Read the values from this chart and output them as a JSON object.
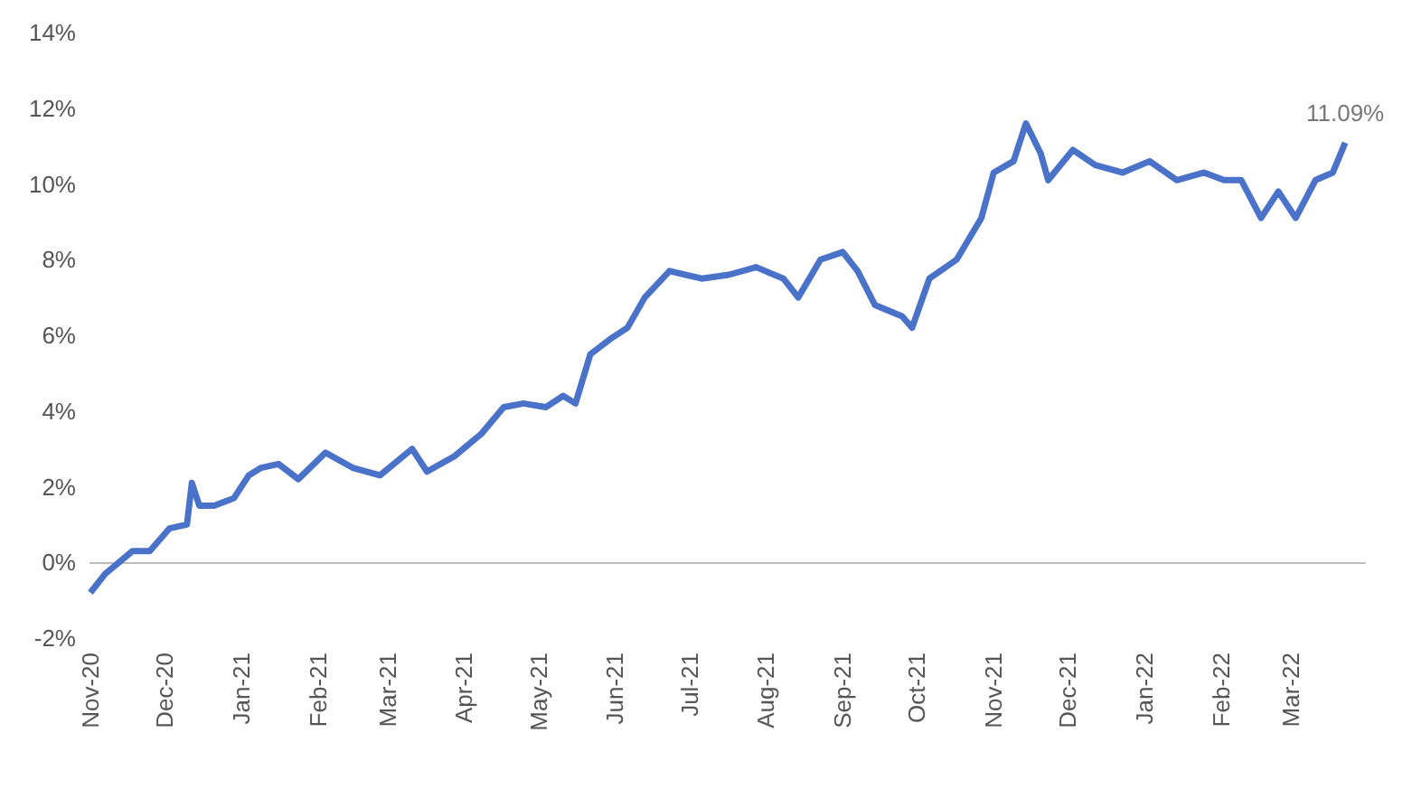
{
  "chart_data": {
    "type": "line",
    "x": [
      "2020-11-01",
      "2020-11-07",
      "2020-11-18",
      "2020-11-25",
      "2020-12-03",
      "2020-12-10",
      "2020-12-12",
      "2020-12-15",
      "2020-12-21",
      "2020-12-29",
      "2021-01-04",
      "2021-01-09",
      "2021-01-16",
      "2021-01-24",
      "2021-02-04",
      "2021-02-15",
      "2021-02-26",
      "2021-03-11",
      "2021-03-17",
      "2021-03-28",
      "2021-04-08",
      "2021-04-17",
      "2021-04-25",
      "2021-05-04",
      "2021-05-11",
      "2021-05-16",
      "2021-05-22",
      "2021-05-30",
      "2021-06-06",
      "2021-06-13",
      "2021-06-23",
      "2021-07-06",
      "2021-07-17",
      "2021-07-28",
      "2021-08-08",
      "2021-08-14",
      "2021-08-23",
      "2021-09-01",
      "2021-09-07",
      "2021-09-14",
      "2021-09-25",
      "2021-09-29",
      "2021-10-06",
      "2021-10-17",
      "2021-10-27",
      "2021-11-01",
      "2021-11-09",
      "2021-11-14",
      "2021-11-20",
      "2021-11-23",
      "2021-12-03",
      "2021-12-12",
      "2021-12-23",
      "2022-01-03",
      "2022-01-14",
      "2022-01-25",
      "2022-02-02",
      "2022-02-09",
      "2022-02-17",
      "2022-02-24",
      "2022-03-03",
      "2022-03-11",
      "2022-03-18",
      "2022-03-23"
    ],
    "series": [
      {
        "color": "#4a72c8",
        "values": [
          -0.8,
          -0.3,
          0.3,
          0.3,
          0.9,
          1.0,
          2.1,
          1.5,
          1.5,
          1.7,
          2.3,
          2.5,
          2.6,
          2.2,
          2.9,
          2.5,
          2.3,
          3.0,
          2.4,
          2.8,
          3.4,
          4.1,
          4.2,
          4.1,
          4.4,
          4.2,
          5.5,
          5.9,
          6.2,
          7.0,
          7.7,
          7.5,
          7.6,
          7.8,
          7.5,
          7.0,
          8.0,
          8.2,
          7.7,
          6.8,
          6.5,
          6.2,
          7.5,
          8.0,
          9.1,
          10.3,
          10.6,
          11.6,
          10.8,
          10.1,
          10.9,
          10.5,
          10.3,
          10.6,
          10.1,
          10.3,
          10.1,
          10.1,
          9.1,
          9.8,
          9.1,
          10.1,
          10.3,
          11.09
        ]
      }
    ],
    "xlim": [
      "2020-11-01",
      "2022-03-31"
    ],
    "xticks": [
      {
        "value": "2020-11-01",
        "label": "Nov-20"
      },
      {
        "value": "2020-12-01",
        "label": "Dec-20"
      },
      {
        "value": "2021-01-01",
        "label": "Jan-21"
      },
      {
        "value": "2021-02-01",
        "label": "Feb-21"
      },
      {
        "value": "2021-03-01",
        "label": "Mar-21"
      },
      {
        "value": "2021-04-01",
        "label": "Apr-21"
      },
      {
        "value": "2021-05-01",
        "label": "May-21"
      },
      {
        "value": "2021-06-01",
        "label": "Jun-21"
      },
      {
        "value": "2021-07-01",
        "label": "Jul-21"
      },
      {
        "value": "2021-08-01",
        "label": "Aug-21"
      },
      {
        "value": "2021-09-01",
        "label": "Sep-21"
      },
      {
        "value": "2021-10-01",
        "label": "Oct-21"
      },
      {
        "value": "2021-11-01",
        "label": "Nov-21"
      },
      {
        "value": "2021-12-01",
        "label": "Dec-21"
      },
      {
        "value": "2022-01-01",
        "label": "Jan-22"
      },
      {
        "value": "2022-02-01",
        "label": "Feb-22"
      },
      {
        "value": "2022-03-01",
        "label": "Mar-22"
      }
    ],
    "ylim": [
      -2,
      14
    ],
    "yticks": [
      {
        "value": -2,
        "label": "-2%"
      },
      {
        "value": 0,
        "label": "0%"
      },
      {
        "value": 2,
        "label": "2%"
      },
      {
        "value": 4,
        "label": "4%"
      },
      {
        "value": 6,
        "label": "6%"
      },
      {
        "value": 8,
        "label": "8%"
      },
      {
        "value": 10,
        "label": "10%"
      },
      {
        "value": 12,
        "label": "12%"
      },
      {
        "value": 14,
        "label": "14%"
      }
    ],
    "annotations": [
      {
        "text": "11.09%",
        "x": "2022-03-23",
        "y": 11.09
      }
    ],
    "marker": "none",
    "line_style": "solid"
  }
}
